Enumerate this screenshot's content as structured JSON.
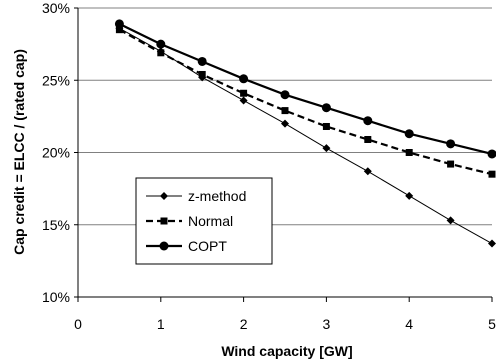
{
  "chart_data": {
    "type": "line",
    "xlabel": "Wind capacity [GW]",
    "ylabel": "Cap credit = ELCC / (rated cap)",
    "xlim": [
      0,
      5
    ],
    "ylim": [
      10,
      30
    ],
    "x_ticks": [
      0,
      1,
      2,
      3,
      4,
      5
    ],
    "x_tick_labels": [
      "0",
      "1",
      "2",
      "3",
      "4",
      "5"
    ],
    "y_ticks": [
      10,
      15,
      20,
      25,
      30
    ],
    "y_tick_labels": [
      "10%",
      "15%",
      "20%",
      "25%",
      "30%"
    ],
    "grid": "horizontal",
    "legend_position": "lower-left inside plot",
    "series": [
      {
        "name": "z-method",
        "marker": "diamond",
        "line": "thin solid",
        "x": [
          0.5,
          1,
          1.5,
          2,
          2.5,
          3,
          3.5,
          4,
          4.5,
          5
        ],
        "values": [
          28.6,
          27.0,
          25.2,
          23.6,
          22.0,
          20.3,
          18.7,
          17.0,
          15.3,
          13.7
        ]
      },
      {
        "name": "Normal",
        "marker": "square",
        "line": "thick dashed",
        "x": [
          0.5,
          1,
          1.5,
          2,
          2.5,
          3,
          3.5,
          4,
          4.5,
          5
        ],
        "values": [
          28.5,
          26.9,
          25.4,
          24.1,
          22.9,
          21.8,
          20.9,
          20.0,
          19.2,
          18.5
        ]
      },
      {
        "name": "COPT",
        "marker": "circle",
        "line": "thick solid",
        "x": [
          0.5,
          1,
          1.5,
          2,
          2.5,
          3,
          3.5,
          4,
          4.5,
          5
        ],
        "values": [
          28.9,
          27.5,
          26.3,
          25.1,
          24.0,
          23.1,
          22.2,
          21.3,
          20.6,
          19.9
        ]
      }
    ]
  }
}
